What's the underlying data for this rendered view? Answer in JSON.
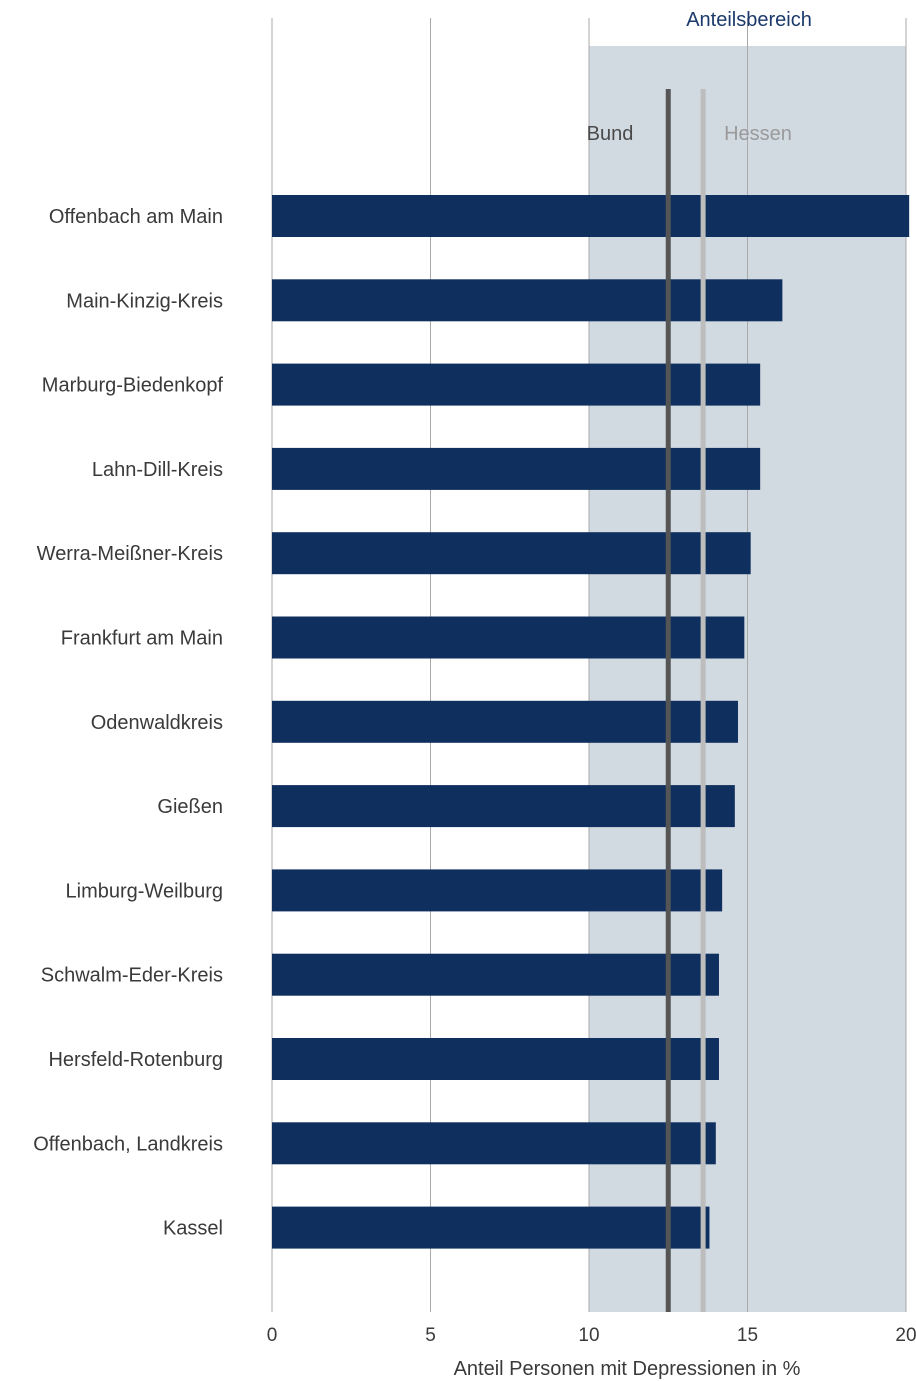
{
  "chart_data": {
    "type": "bar",
    "orientation": "horizontal",
    "categories": [
      "Offenbach am Main",
      "Main-Kinzig-Kreis",
      "Marburg-Biedenkopf",
      "Lahn-Dill-Kreis",
      "Werra-Meißner-Kreis",
      "Frankfurt am Main",
      "Odenwaldkreis",
      "Gießen",
      "Limburg-Weilburg",
      "Schwalm-Eder-Kreis",
      "Hersfeld-Rotenburg",
      "Offenbach, Landkreis",
      "Kassel"
    ],
    "values": [
      20.1,
      16.1,
      15.4,
      15.4,
      15.1,
      14.9,
      14.7,
      14.6,
      14.2,
      14.1,
      14.1,
      14.0,
      13.8
    ],
    "xlabel": "Anteil Personen mit Depressionen in %",
    "xlim": [
      0,
      20
    ],
    "xticks": [
      "0",
      "5",
      "10",
      "15",
      "20"
    ],
    "grid": "vertical",
    "band": {
      "label": "Anteilsbereich",
      "from": 10,
      "to": 20,
      "color": "#d1d9e1"
    },
    "reference_lines": [
      {
        "label": "Bund",
        "value": 12.5,
        "color": "#555555"
      },
      {
        "label": "Hessen",
        "value": 13.6,
        "color": "#bdbdbd"
      }
    ],
    "bar_color": "#0f2f5e",
    "band_label_color": "#1b3a6b",
    "bund_label_color": "#4a4a4a",
    "hessen_label_color": "#9a9a9a"
  }
}
